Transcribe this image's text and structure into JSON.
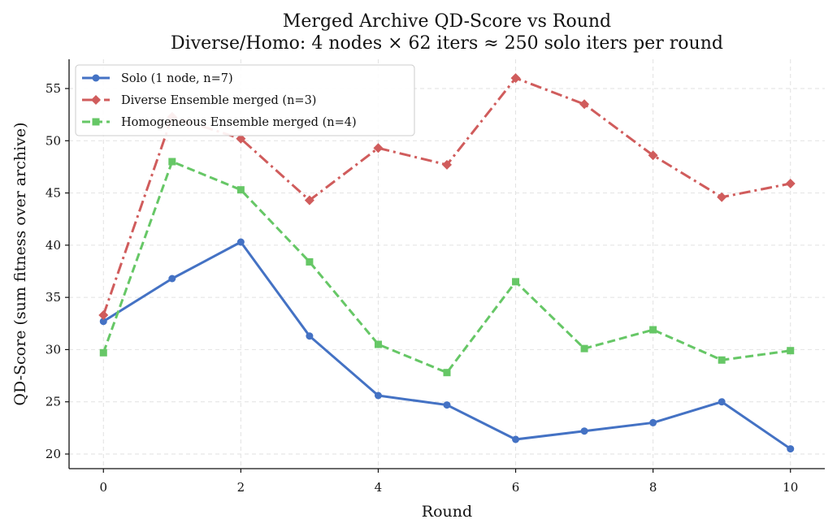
{
  "chart_data": {
    "type": "line",
    "title": "Merged Archive QD-Score vs Round",
    "subtitle": "Diverse/Homo: 4 nodes × 62 iters ≈ 250 solo iters per round",
    "xlabel": "Round",
    "ylabel": "QD-Score (sum fitness over archive)",
    "x": [
      0,
      1,
      2,
      3,
      4,
      5,
      6,
      7,
      8,
      9,
      10
    ],
    "xlim": [
      -0.5,
      10.5
    ],
    "ylim": [
      18.6,
      57.8
    ],
    "xticks": [
      0,
      2,
      4,
      6,
      8,
      10
    ],
    "yticks": [
      20,
      25,
      30,
      35,
      40,
      45,
      50,
      55
    ],
    "grid": true,
    "legend_position": "top-left",
    "series": [
      {
        "name": "Solo (1 node, n=7)",
        "color": "#4472c4",
        "linestyle": "solid",
        "marker": "circle",
        "values": [
          32.7,
          36.8,
          40.3,
          31.3,
          25.6,
          24.7,
          21.4,
          22.2,
          23.0,
          25.0,
          20.5
        ]
      },
      {
        "name": "Diverse Ensemble merged (n=3)",
        "color": "#d05c5c",
        "linestyle": "dashdot",
        "marker": "diamond",
        "values": [
          33.3,
          52.3,
          50.2,
          44.3,
          49.3,
          47.7,
          56.0,
          53.5,
          48.6,
          44.6,
          45.9
        ]
      },
      {
        "name": "Homogeneous Ensemble merged (n=4)",
        "color": "#66c766",
        "linestyle": "dashed",
        "marker": "square",
        "values": [
          29.7,
          48.0,
          45.3,
          38.4,
          30.5,
          27.8,
          36.5,
          30.1,
          31.9,
          29.0,
          29.9
        ]
      }
    ]
  }
}
